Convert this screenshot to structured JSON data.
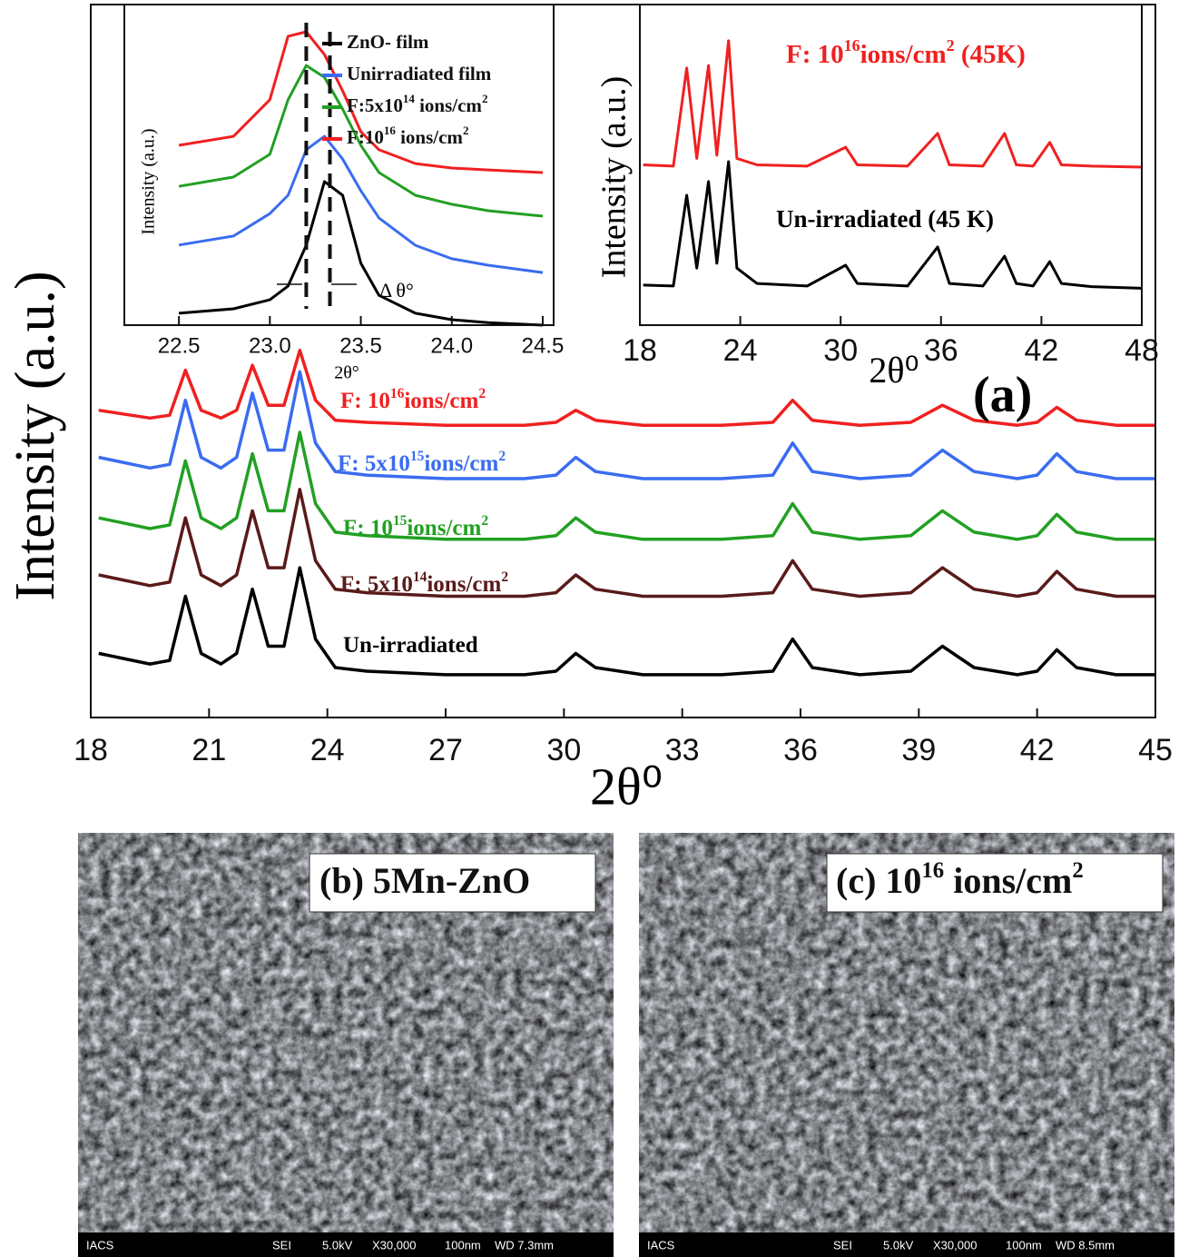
{
  "chart_data": [
    {
      "type": "line",
      "xlabel": "2θ⁰",
      "ylabel": "Intensity (a.u.)",
      "annotation": "(a)",
      "xlim": [
        18,
        45
      ],
      "xticks": [
        18,
        21,
        24,
        27,
        30,
        33,
        36,
        39,
        42,
        45
      ],
      "ylim": [
        0,
        100
      ],
      "x": [
        18.2,
        19.5,
        20.0,
        20.4,
        20.8,
        21.3,
        21.7,
        22.1,
        22.5,
        22.9,
        23.3,
        23.7,
        24.2,
        25,
        27,
        29,
        29.8,
        30.3,
        30.8,
        32,
        34,
        35.3,
        35.8,
        36.3,
        37.5,
        38.8,
        39.6,
        40.4,
        41.5,
        42.0,
        42.5,
        43.0,
        44,
        45
      ],
      "series": [
        {
          "name": [
            "Un-irradiated"
          ],
          "color": "#000000",
          "values": [
            9,
            7.5,
            8,
            17,
            9,
            7.5,
            9,
            18,
            10,
            10,
            21,
            11,
            7,
            6.5,
            6,
            6,
            6.5,
            9,
            7,
            6,
            6,
            6.5,
            11,
            7,
            6,
            6.5,
            10,
            7,
            6,
            6.5,
            9.5,
            7,
            6,
            6
          ]
        },
        {
          "name": [
            "F: 5x10",
            "14",
            "ions/cm",
            "2"
          ],
          "color": "#5a1a1a",
          "values": [
            20,
            18.5,
            19,
            28,
            20,
            18.5,
            20,
            29,
            21,
            21,
            32,
            22,
            18,
            17.5,
            17,
            17,
            17.5,
            20,
            18,
            17,
            17,
            17.5,
            22,
            18,
            17,
            17.5,
            21,
            18,
            17,
            17.5,
            20.5,
            18,
            17,
            17
          ]
        },
        {
          "name": [
            "F: 10",
            "15",
            "ions/cm",
            "2"
          ],
          "color": "#22a022",
          "values": [
            28,
            26.5,
            27,
            36,
            28,
            26.5,
            28,
            37,
            29,
            29,
            40,
            30,
            26,
            25.5,
            25,
            25,
            25.5,
            28,
            26,
            25,
            25,
            25.5,
            30,
            26,
            25,
            25.5,
            29,
            26,
            25,
            25.5,
            28.5,
            26,
            25,
            25
          ]
        },
        {
          "name": [
            "F: 5x10",
            "15",
            "ions/cm",
            "2"
          ],
          "color": "#3a6cf0",
          "values": [
            36.5,
            35,
            35.5,
            44.5,
            36.5,
            35,
            36.5,
            45.5,
            37.5,
            37.5,
            48.5,
            38.5,
            34.5,
            34,
            33.5,
            33.5,
            34,
            36.5,
            34.5,
            33.5,
            33.5,
            34,
            38.5,
            34.5,
            33.5,
            34,
            37.5,
            34.5,
            33.5,
            34,
            37,
            34.5,
            33.5,
            33.5
          ]
        },
        {
          "name": [
            "F: 10",
            "16",
            "ions/cm",
            "2"
          ],
          "color": "#f02020",
          "values": [
            43.1,
            42,
            42.4,
            48.7,
            43.1,
            42,
            43.1,
            49.4,
            43.8,
            43.8,
            51.5,
            44.5,
            41.7,
            41.4,
            41,
            41,
            41.4,
            43.1,
            41.7,
            41,
            41,
            41.4,
            44.5,
            41.7,
            41,
            41.4,
            43.8,
            41.7,
            41,
            41.4,
            43.5,
            41.7,
            41,
            41
          ]
        }
      ]
    },
    {
      "type": "line",
      "xlabel": "2θ°",
      "ylabel": "Intensity (a.u.)",
      "annotation": "Δ θ°",
      "xlim": [
        22.2,
        24.56
      ],
      "xticks": [
        22.5,
        {
          "value": 23.0,
          "label": "23.0"
        },
        23.5,
        {
          "value": 24.0,
          "label": "24.0"
        },
        24.5
      ],
      "ylim": [
        0,
        100
      ],
      "x": [
        22.5,
        22.8,
        23.0,
        23.1,
        23.2,
        23.3,
        23.4,
        23.5,
        23.6,
        23.8,
        24.0,
        24.2,
        24.5
      ],
      "series": [
        {
          "name": [
            "ZnO- film"
          ],
          "color": "#000000",
          "values": [
            3.7,
            5.1,
            7.9,
            12.2,
            24.9,
            44.8,
            40.5,
            19.3,
            9.3,
            3.7,
            1.7,
            0.8,
            0
          ]
        },
        {
          "name": [
            "Unirradiated film"
          ],
          "color": "#3a6cf0",
          "values": [
            25,
            27.8,
            34.8,
            40.5,
            54.7,
            58.9,
            51.8,
            41.9,
            33.4,
            24.9,
            20.7,
            18.7,
            16.4
          ]
        },
        {
          "name": [
            "F:5x10",
            "14",
            " ions/cm",
            "2"
          ],
          "color": "#22a022",
          "values": [
            43.3,
            46.2,
            53.3,
            70.3,
            81,
            77.3,
            67.4,
            56.1,
            47.6,
            40.5,
            37.7,
            35.7,
            34
          ]
        },
        {
          "name": [
            "F:10",
            "16",
            " ions/cm",
            "2"
          ],
          "color": "#f02020",
          "values": [
            56.1,
            58.9,
            70.3,
            90.1,
            91.5,
            84.4,
            73.1,
            60.3,
            54.7,
            50.4,
            49,
            48.4,
            47.6
          ]
        }
      ]
    },
    {
      "type": "line",
      "xlabel": "2θ⁰",
      "ylabel": "Intensity (a.u.)",
      "xlim": [
        18,
        48
      ],
      "xticks": [
        18,
        24,
        30,
        36,
        42,
        48
      ],
      "ylim": [
        0,
        100
      ],
      "x": [
        18.2,
        20,
        20.8,
        21.4,
        22.1,
        22.6,
        23.3,
        23.8,
        25,
        28,
        30.3,
        31,
        34,
        35.8,
        36.5,
        38.5,
        39.8,
        40.5,
        41.5,
        42.5,
        43.2,
        45,
        48
      ],
      "series": [
        {
          "name": [
            "Un-irradiated (45 K)"
          ],
          "color": "#000000",
          "values": [
            12.5,
            12.2,
            40.5,
            17.8,
            44.8,
            19.3,
            51,
            17.8,
            13,
            12.2,
            18.7,
            13,
            12.2,
            24.4,
            13,
            12.2,
            21.5,
            13,
            12.2,
            19.8,
            13,
            12,
            11.5
          ]
        },
        {
          "name": [
            "F: 10",
            "16",
            "ions/cm",
            "2",
            " (45K)"
          ],
          "color": "#f02020",
          "values": [
            50,
            49.6,
            80.2,
            52,
            81,
            53,
            88.7,
            52,
            50,
            49.6,
            55.5,
            50,
            49.6,
            59.8,
            50,
            49.6,
            59.8,
            50,
            49.6,
            57,
            50,
            49.6,
            49.3
          ]
        }
      ]
    }
  ],
  "images": [
    {
      "label": [
        "(b) 5Mn-ZnO"
      ],
      "footer": [
        "IACS",
        "SEI",
        "5.0kV",
        "X30,000",
        "100nm",
        "WD 7.3mm"
      ]
    },
    {
      "label": [
        "(c) 10",
        "16",
        " ions/cm",
        "2"
      ],
      "footer": [
        "IACS",
        "SEI",
        "5.0kV",
        "X30,000",
        "100nm",
        "WD 8.5mm"
      ]
    }
  ]
}
